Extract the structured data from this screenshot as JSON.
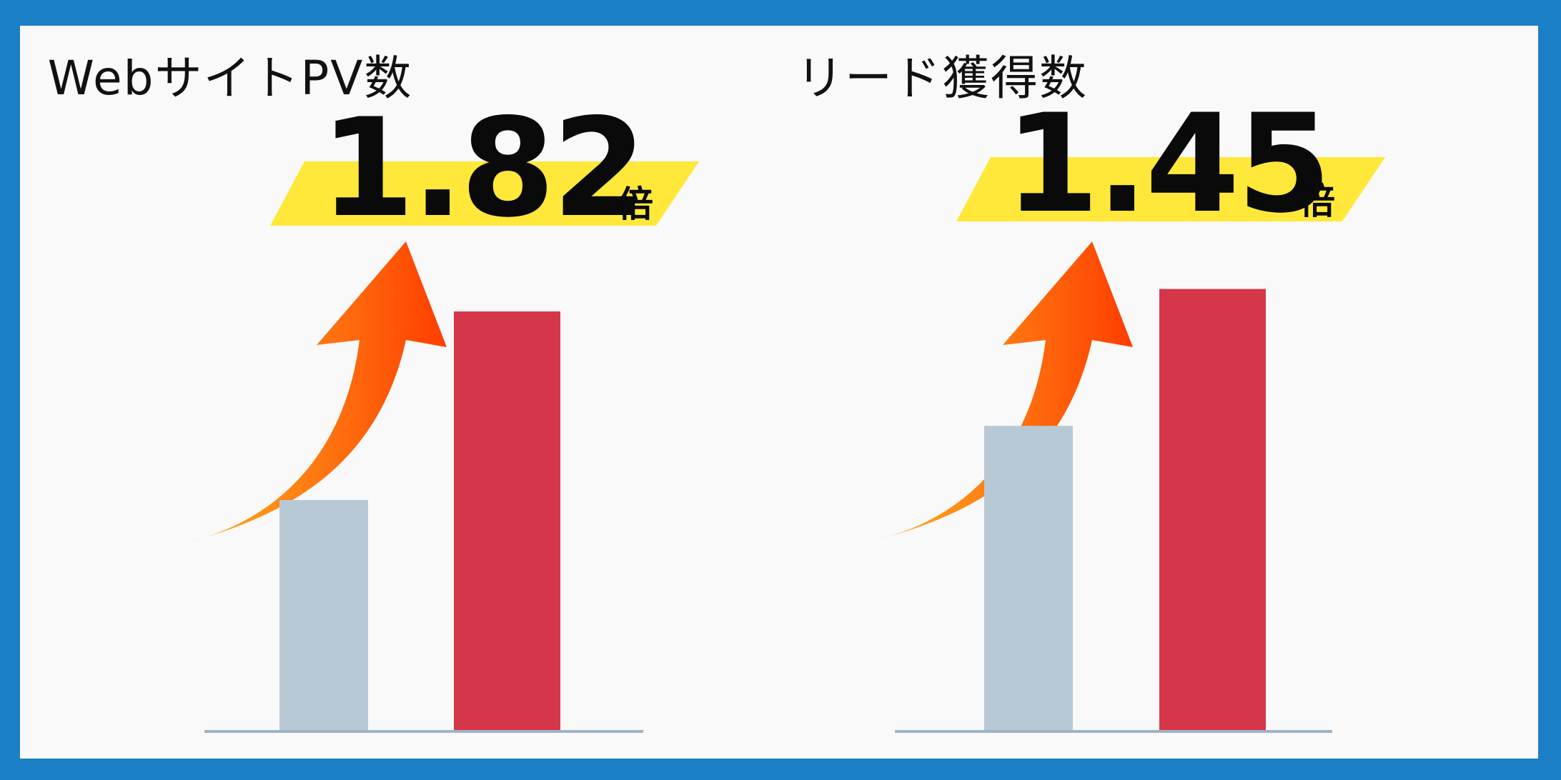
{
  "colors": {
    "frame": "#1b7fc5",
    "background": "#f9f9f9",
    "before_bar": "#b7c9d4",
    "after_bar": "#d6364a",
    "highlight": "#ffe83a",
    "arrow_start": "#ffb221",
    "arrow_end": "#ff3d00",
    "baseline": "#9fb3c5"
  },
  "icons": [
    "up-arrow-icon",
    "up-arrow-icon"
  ],
  "chart_data": [
    {
      "type": "bar",
      "title": "WebサイトPV数",
      "ratio_value": "1.82",
      "ratio_unit": "倍",
      "categories": [
        "",
        ""
      ],
      "values": [
        1,
        1.82
      ],
      "ylim": [
        0,
        2.05
      ],
      "grid": false
    },
    {
      "type": "bar",
      "title": "リード獲得数",
      "ratio_value": "1.45",
      "ratio_unit": "倍",
      "categories": [
        "",
        ""
      ],
      "values": [
        1,
        1.45
      ],
      "ylim": [
        0,
        1.55
      ],
      "grid": false
    }
  ]
}
